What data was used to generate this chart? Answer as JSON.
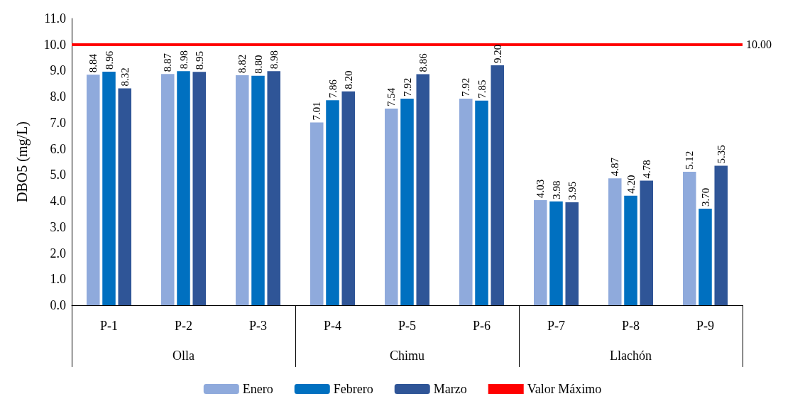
{
  "chart_data": {
    "type": "bar",
    "ylabel": "DBO5 (mg/L)",
    "categories": [
      "P-1",
      "P-2",
      "P-3",
      "P-4",
      "P-5",
      "P-6",
      "P-7",
      "P-8",
      "P-9"
    ],
    "series": [
      {
        "name": "Enero",
        "color": "#8faadc",
        "values": [
          8.84,
          8.87,
          8.82,
          7.01,
          7.54,
          7.92,
          4.03,
          4.87,
          5.12
        ],
        "value_labels": [
          "8.84",
          "8.87",
          "8.82",
          "7.01",
          "7.54",
          "7.92",
          "4.03",
          "4.87",
          "5.12"
        ]
      },
      {
        "name": "Febrero",
        "color": "#0070c0",
        "values": [
          8.96,
          8.98,
          8.8,
          7.86,
          7.92,
          7.85,
          3.98,
          4.2,
          3.7
        ],
        "value_labels": [
          "8.96",
          "8.98",
          "8.80",
          "7.86",
          "7.92",
          "7.85",
          "3.98",
          "4.20",
          "3.70"
        ]
      },
      {
        "name": "Marzo",
        "color": "#2f5597",
        "values": [
          8.32,
          8.95,
          8.98,
          8.2,
          8.86,
          9.2,
          3.95,
          4.78,
          5.35
        ],
        "value_labels": [
          "8.32",
          "8.95",
          "8.98",
          "8.20",
          "8.86",
          "9.20",
          "3.95",
          "4.78",
          "5.35"
        ]
      }
    ],
    "ylim": [
      0,
      11
    ],
    "yticks": [
      {
        "value": 0,
        "label": "0.0"
      },
      {
        "value": 1,
        "label": "1.0"
      },
      {
        "value": 2,
        "label": "2.0"
      },
      {
        "value": 3,
        "label": "3.0"
      },
      {
        "value": 4,
        "label": "4.0"
      },
      {
        "value": 5,
        "label": "5.0"
      },
      {
        "value": 6,
        "label": "6.0"
      },
      {
        "value": 7,
        "label": "7.0"
      },
      {
        "value": 8,
        "label": "8.0"
      },
      {
        "value": 9,
        "label": "9.0"
      },
      {
        "value": 10,
        "label": "10.0"
      },
      {
        "value": 11,
        "label": "11.0"
      }
    ],
    "ref_lines": [
      {
        "axis": "y",
        "value": 10,
        "label": "Valor Máximo",
        "color": "#ff0000"
      }
    ],
    "annotations": [
      "Olla",
      "Chimu",
      "Llachón",
      "10.00"
    ],
    "grid": false,
    "legend": "bottom"
  }
}
